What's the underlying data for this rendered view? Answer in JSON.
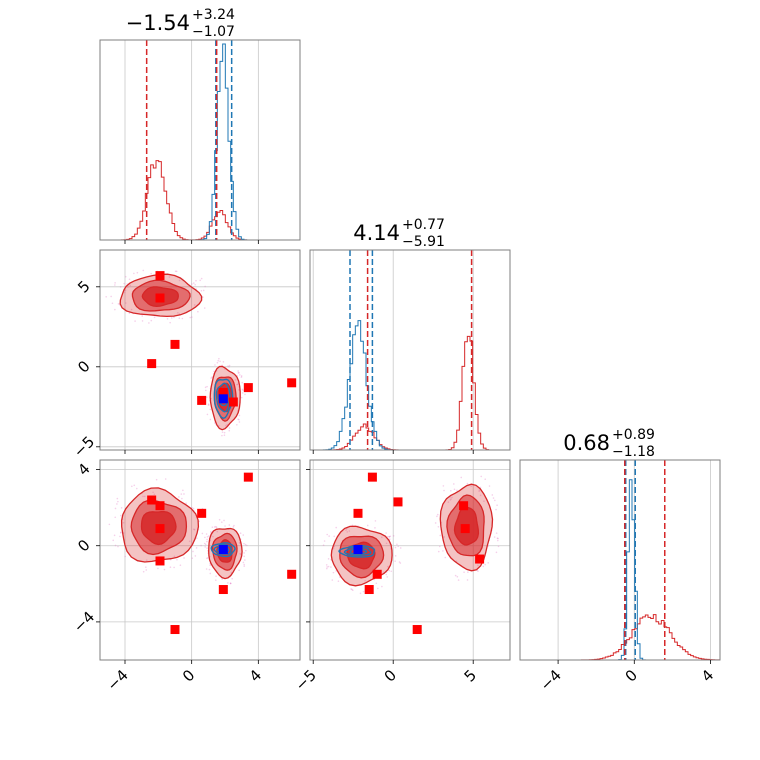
{
  "chart_data": {
    "type": "corner",
    "colors": {
      "red": "#d62728",
      "blue": "#1f77b4",
      "marker_red": "#ff0000",
      "marker_blue": "#0000ff",
      "grid": "#c8c8c8",
      "frame": "#7f7f7f"
    },
    "parameters": [
      {
        "name": "p0",
        "range": [
          -5.5,
          6.5
        ],
        "ticks": [
          -4,
          0,
          4
        ],
        "tick_labels": [
          "−4",
          "0",
          "4"
        ]
      },
      {
        "name": "p1",
        "range": [
          -5.2,
          7.3
        ],
        "ticks": [
          -5,
          0,
          5
        ],
        "tick_labels": [
          "−5",
          "0",
          "5"
        ]
      },
      {
        "name": "p2",
        "range": [
          -6.0,
          4.5
        ],
        "ticks": [
          -4,
          0,
          4
        ],
        "tick_labels": [
          "−4",
          "0",
          "4"
        ]
      }
    ],
    "titles": [
      {
        "value": "−1.54",
        "plus": "+3.24",
        "minus": "−1.07"
      },
      {
        "value": "4.14",
        "plus": "+0.77",
        "minus": "−5.91"
      },
      {
        "value": "0.68",
        "plus": "+0.89",
        "minus": "−1.18"
      }
    ],
    "diagonals": [
      {
        "red_modes": [
          {
            "mu": -2.1,
            "sigma": 0.55,
            "amp": 0.4
          },
          {
            "mu": 1.7,
            "sigma": 0.45,
            "amp": 0.14
          }
        ],
        "blue_modes": [
          {
            "mu": 1.9,
            "sigma": 0.35,
            "amp": 0.93
          }
        ],
        "red_quantiles": [
          -2.7,
          1.5
        ],
        "blue_quantiles": [
          1.45,
          2.4
        ]
      },
      {
        "red_modes": [
          {
            "mu": -1.8,
            "sigma": 0.6,
            "amp": 0.12
          },
          {
            "mu": 4.7,
            "sigma": 0.35,
            "amp": 0.58
          }
        ],
        "blue_modes": [
          {
            "mu": -2.2,
            "sigma": 0.55,
            "amp": 0.6
          }
        ],
        "red_quantiles": [
          -1.6,
          4.9
        ],
        "blue_quantiles": [
          -2.7,
          -1.3
        ]
      },
      {
        "red_modes": [
          {
            "mu": 0.9,
            "sigma": 1.0,
            "amp": 0.22
          }
        ],
        "blue_modes": [
          {
            "mu": -0.15,
            "sigma": 0.17,
            "amp": 0.92
          }
        ],
        "red_quantiles": [
          -0.5,
          1.6
        ],
        "blue_quantiles": [
          -0.45,
          0.05
        ]
      }
    ],
    "pairs": [
      {
        "row": 1,
        "col": 0,
        "red_blobs": [
          {
            "cx": -1.9,
            "cy": 4.4,
            "rx": 2.4,
            "ry": 1.3
          },
          {
            "cx": 2.0,
            "cy": -1.9,
            "rx": 0.9,
            "ry": 1.9
          }
        ],
        "blue_blobs": [
          {
            "cx": 1.9,
            "cy": -1.9,
            "rx": 0.55,
            "ry": 1.2
          }
        ],
        "red_points": [
          [
            -1.9,
            5.7
          ],
          [
            -1.9,
            4.3
          ],
          [
            -1.0,
            1.4
          ],
          [
            -2.4,
            0.2
          ],
          [
            6.0,
            -1.0
          ],
          [
            3.4,
            -1.3
          ],
          [
            0.6,
            -2.1
          ],
          [
            1.9,
            -1.6
          ],
          [
            2.5,
            -2.2
          ]
        ],
        "blue_point": [
          1.9,
          -2.0
        ]
      },
      {
        "row": 2,
        "col": 0,
        "red_blobs": [
          {
            "cx": -2.0,
            "cy": 1.0,
            "rx": 2.3,
            "ry": 1.9
          },
          {
            "cx": 2.0,
            "cy": -0.3,
            "rx": 1.0,
            "ry": 1.3
          }
        ],
        "blue_blobs": [
          {
            "cx": 1.9,
            "cy": -0.2,
            "rx": 0.7,
            "ry": 0.35
          }
        ],
        "red_points": [
          [
            -2.4,
            2.4
          ],
          [
            -1.9,
            2.1
          ],
          [
            -1.9,
            0.9
          ],
          [
            -1.9,
            -0.8
          ],
          [
            -1.0,
            -4.4
          ],
          [
            0.6,
            1.7
          ],
          [
            1.9,
            -2.3
          ],
          [
            3.4,
            3.6
          ],
          [
            6.0,
            -1.5
          ]
        ],
        "blue_point": [
          1.9,
          -0.2
        ]
      },
      {
        "row": 2,
        "col": 1,
        "red_blobs": [
          {
            "cx": -2.0,
            "cy": -0.5,
            "rx": 1.9,
            "ry": 1.5
          },
          {
            "cx": 4.6,
            "cy": 1.0,
            "rx": 1.6,
            "ry": 2.2
          }
        ],
        "blue_blobs": [
          {
            "cx": -2.2,
            "cy": -0.3,
            "rx": 1.1,
            "ry": 0.3
          }
        ],
        "red_points": [
          [
            -1.3,
            3.6
          ],
          [
            -2.2,
            1.7
          ],
          [
            0.3,
            2.3
          ],
          [
            4.4,
            2.1
          ],
          [
            4.5,
            0.9
          ],
          [
            5.4,
            -0.7
          ],
          [
            -1.0,
            -1.5
          ],
          [
            -1.5,
            -2.3
          ],
          [
            1.5,
            -4.4
          ]
        ],
        "blue_point": [
          -2.2,
          -0.2
        ]
      }
    ]
  }
}
